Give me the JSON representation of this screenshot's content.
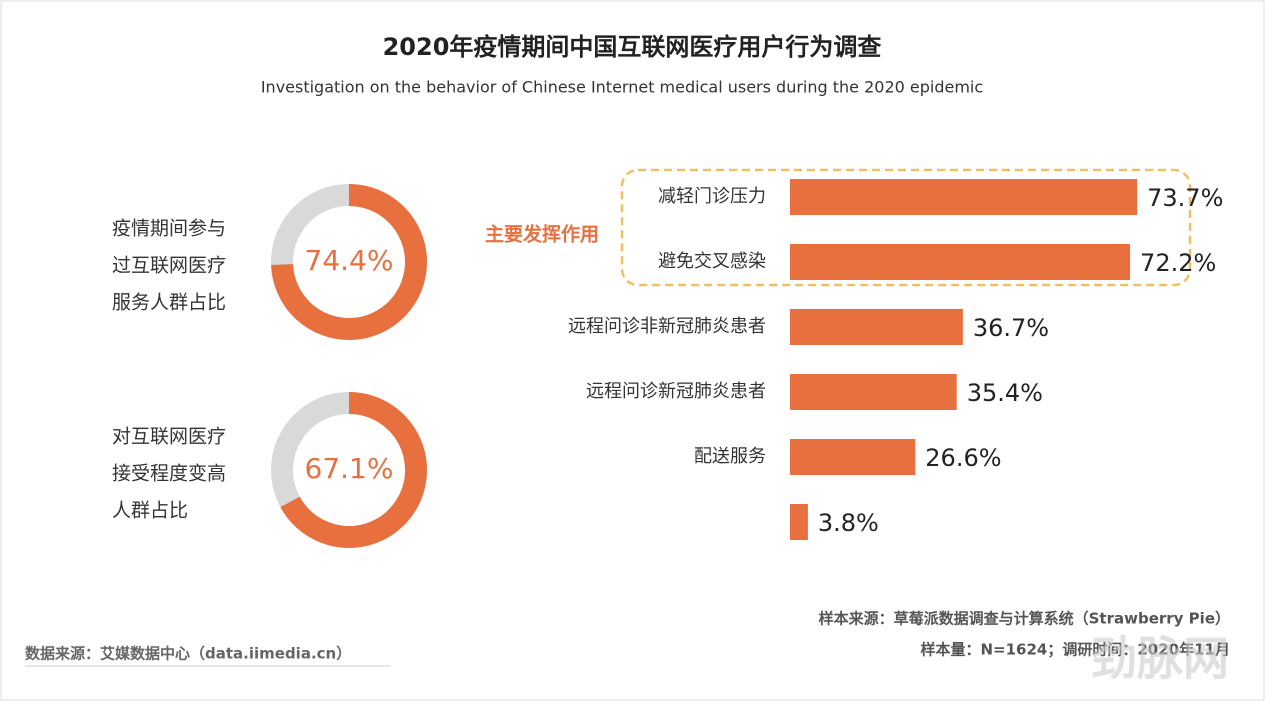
{
  "title": "2020年疫情期间中国互联网医疗用户行为调查",
  "subtitle": "Investigation on the behavior of Chinese Internet medical users during the 2020 epidemic",
  "chart_data": [
    {
      "type": "donut",
      "label_lines": [
        "疫情期间参与",
        "过互联网医疗",
        "服务人群占比"
      ],
      "values": [
        74.4
      ],
      "value_labels": [
        "74.4%"
      ],
      "color": "#e8703f",
      "track_color": "#d9d9d9"
    },
    {
      "type": "donut",
      "label_lines": [
        "对互联网医疗",
        "接受程度变高",
        "人群占比"
      ],
      "values": [
        67.1
      ],
      "value_labels": [
        "67.1%"
      ],
      "color": "#e8703f",
      "track_color": "#d9d9d9"
    },
    {
      "type": "bar",
      "orientation": "horizontal",
      "highlight_label": "主要发挥作用",
      "categories": [
        "减轻门诊压力",
        "避免交叉感染",
        "远程问诊非新冠肺炎患者",
        "远程问诊新冠肺炎患者",
        "配送服务",
        null
      ],
      "values": [
        73.7,
        72.2,
        36.7,
        35.4,
        26.6,
        3.8
      ],
      "value_labels": [
        "73.7%",
        "72.2%",
        "36.7%",
        "35.4%",
        "26.6%",
        "3.8%"
      ],
      "color": "#e8703f"
    }
  ],
  "footer": {
    "source": "数据来源：艾媒数据中心（data.iimedia.cn）",
    "sample_source": "样本来源：草莓派数据调查与计算系统（Strawberry Pie）",
    "sample_info": "样本量：N=1624；调研时间：2020年11月"
  },
  "watermark": "劲脉网"
}
